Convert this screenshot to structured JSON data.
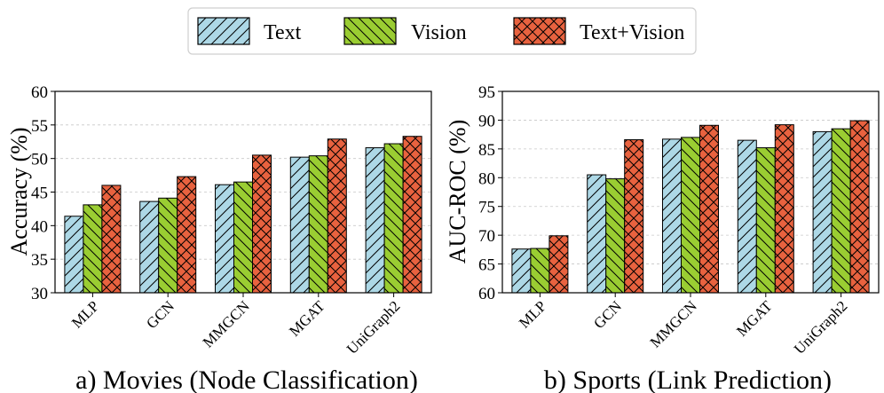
{
  "legend": {
    "position": "top-center",
    "items": [
      {
        "label": "Text",
        "color": "#add8e6",
        "hatch": "diagonal-forward"
      },
      {
        "label": "Vision",
        "color": "#9acd32",
        "hatch": "diagonal-backward"
      },
      {
        "label": "Text+Vision",
        "color": "#e8623f",
        "hatch": "cross"
      }
    ]
  },
  "chart_data": [
    {
      "type": "bar",
      "title": "a) Movies (Node Classification)",
      "ylabel": "Accuracy (%)",
      "xlabel": "",
      "ylim": [
        30,
        60
      ],
      "yticks": [
        30,
        35,
        40,
        45,
        50,
        55,
        60
      ],
      "grid": "horizontal-dashed",
      "categories": [
        "MLP",
        "GCN",
        "MMGCN",
        "MGAT",
        "UniGraph2"
      ],
      "series": [
        {
          "name": "Text",
          "values": [
            41.4,
            43.6,
            46.1,
            50.2,
            51.6
          ]
        },
        {
          "name": "Vision",
          "values": [
            43.1,
            44.1,
            46.5,
            50.4,
            52.2
          ]
        },
        {
          "name": "Text+Vision",
          "values": [
            46.0,
            47.3,
            50.5,
            52.9,
            53.3
          ]
        }
      ]
    },
    {
      "type": "bar",
      "title": "b) Sports (Link Prediction)",
      "ylabel": "AUC-ROC (%)",
      "xlabel": "",
      "ylim": [
        60,
        95
      ],
      "yticks": [
        60,
        65,
        70,
        75,
        80,
        85,
        90,
        95
      ],
      "grid": "horizontal-dashed",
      "categories": [
        "MLP",
        "GCN",
        "MMGCN",
        "MGAT",
        "UniGraph2"
      ],
      "series": [
        {
          "name": "Text",
          "values": [
            67.6,
            80.5,
            86.7,
            86.5,
            88.0
          ]
        },
        {
          "name": "Vision",
          "values": [
            67.7,
            79.8,
            87.0,
            85.2,
            88.5
          ]
        },
        {
          "name": "Text+Vision",
          "values": [
            69.9,
            86.6,
            89.1,
            89.2,
            89.9
          ]
        }
      ]
    }
  ]
}
